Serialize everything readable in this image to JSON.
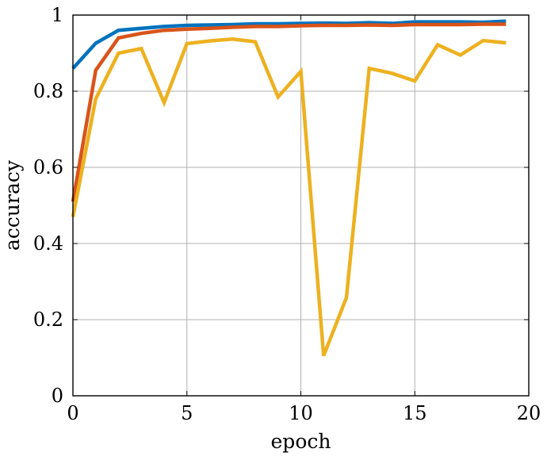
{
  "chart_data": {
    "type": "line",
    "title": "",
    "xlabel": "epoch",
    "ylabel": "accuracy",
    "xlim": [
      0,
      20
    ],
    "ylim": [
      0,
      1
    ],
    "x_ticks": [
      "0",
      "5",
      "10",
      "15",
      "20"
    ],
    "y_ticks": [
      "0",
      "0.2",
      "0.4",
      "0.6",
      "0.8",
      "1"
    ],
    "grid": true,
    "legend": false,
    "x": [
      0,
      1,
      2,
      3,
      4,
      5,
      6,
      7,
      8,
      9,
      10,
      11,
      12,
      13,
      14,
      15,
      16,
      17,
      18,
      19
    ],
    "series": [
      {
        "color": "#0072BD",
        "values": [
          0.86,
          0.926,
          0.96,
          0.965,
          0.97,
          0.973,
          0.974,
          0.975,
          0.977,
          0.977,
          0.978,
          0.979,
          0.978,
          0.98,
          0.978,
          0.982,
          0.982,
          0.982,
          0.981,
          0.984
        ]
      },
      {
        "color": "#D95319",
        "values": [
          0.51,
          0.855,
          0.94,
          0.952,
          0.96,
          0.963,
          0.965,
          0.968,
          0.97,
          0.97,
          0.972,
          0.973,
          0.973,
          0.974,
          0.973,
          0.975,
          0.975,
          0.975,
          0.976,
          0.976
        ]
      },
      {
        "color": "#EDB120",
        "values": [
          0.47,
          0.78,
          0.9,
          0.912,
          0.77,
          0.925,
          0.932,
          0.937,
          0.93,
          0.785,
          0.852,
          0.105,
          0.258,
          0.86,
          0.847,
          0.827,
          0.922,
          0.895,
          0.933,
          0.927
        ]
      }
    ]
  }
}
